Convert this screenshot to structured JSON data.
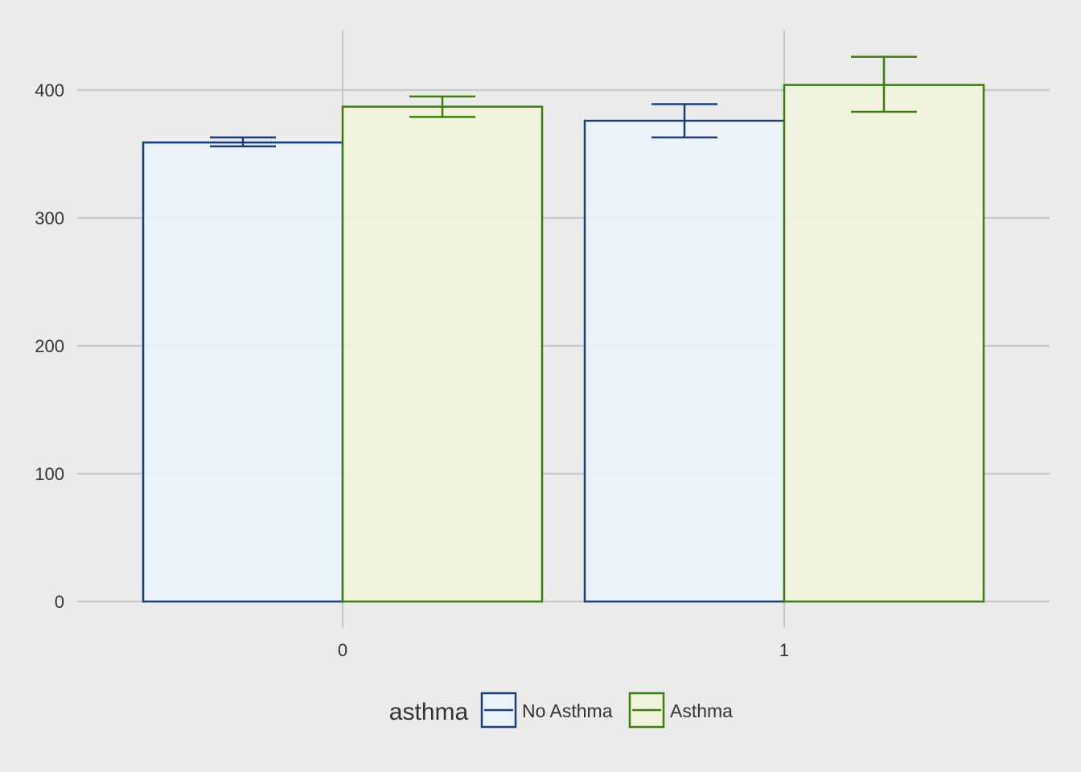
{
  "chart_data": {
    "type": "bar",
    "title": "",
    "xlabel": "",
    "ylabel": "",
    "categories": [
      "0",
      "1"
    ],
    "series": [
      {
        "name": "No Asthma",
        "values": [
          359,
          376
        ],
        "error_low": [
          356,
          363
        ],
        "error_high": [
          363,
          389
        ]
      },
      {
        "name": "Asthma",
        "values": [
          387,
          404
        ],
        "error_low": [
          379,
          383
        ],
        "error_high": [
          395,
          426
        ]
      }
    ],
    "ylim": [
      0,
      450
    ],
    "y_ticks": [
      "0",
      "100",
      "200",
      "300",
      "400"
    ],
    "grid": true,
    "legend": {
      "title": "asthma",
      "position": "bottom"
    },
    "colors": {
      "background": "#ebebeb",
      "grid": "#c8c8c8",
      "series_stroke": [
        "#1b3f7a",
        "#3a7d10"
      ],
      "series_fill": [
        "#eaf2fa",
        "#f1f3dc"
      ]
    }
  }
}
